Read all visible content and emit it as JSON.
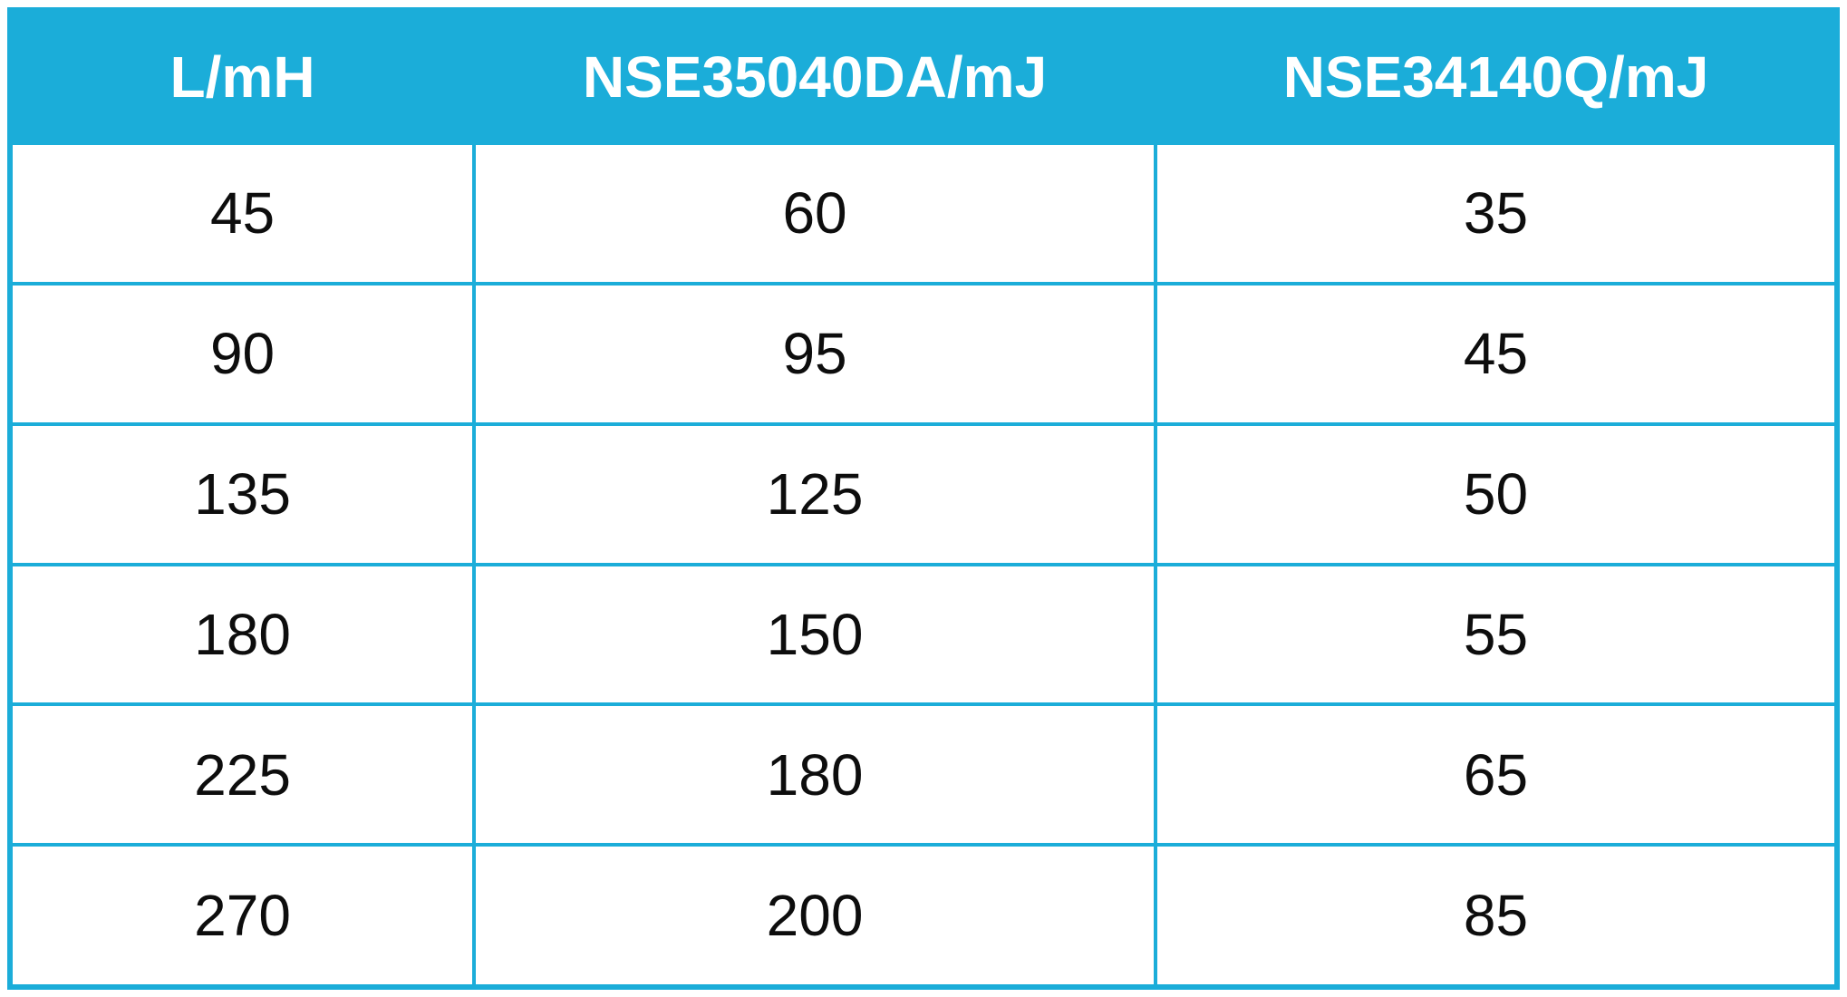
{
  "colors": {
    "accent": "#1badd9",
    "header_bg": "#1badd9",
    "border": "#1badd9",
    "header_text": "#ffffff",
    "cell_text": "#0d0d0d",
    "cell_bg": "#ffffff"
  },
  "chart_data": {
    "type": "table",
    "title": "",
    "columns": [
      "L/mH",
      "NSE35040DA/mJ",
      "NSE34140Q/mJ"
    ],
    "rows": [
      [
        "45",
        "60",
        "35"
      ],
      [
        "90",
        "95",
        "45"
      ],
      [
        "135",
        "125",
        "50"
      ],
      [
        "180",
        "150",
        "55"
      ],
      [
        "225",
        "180",
        "65"
      ],
      [
        "270",
        "200",
        "85"
      ]
    ]
  }
}
